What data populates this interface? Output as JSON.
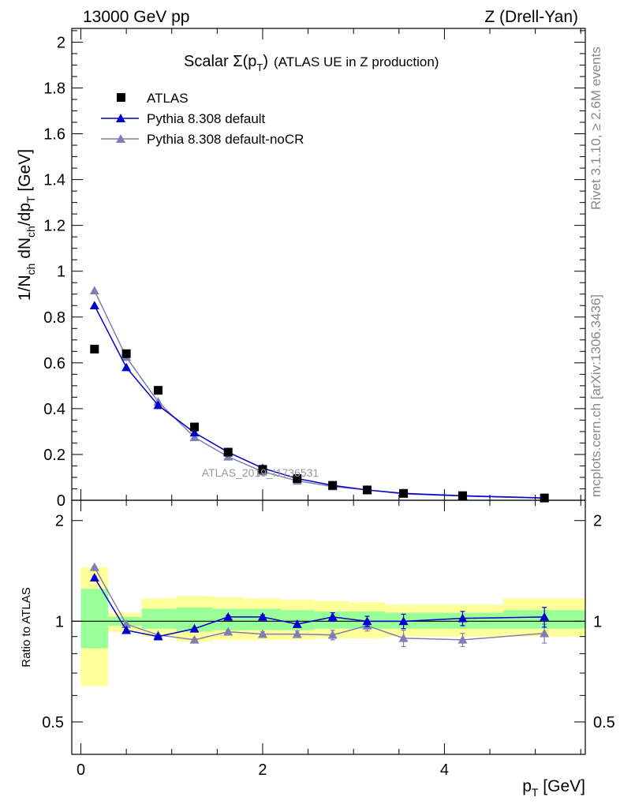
{
  "header": {
    "left": "13000 GeV pp",
    "right": "Z (Drell-Yan)"
  },
  "side_labels": {
    "rivet": "Rivet 3.1.10, ≥ 2.6M events",
    "mcplots": "mcplots.cern.ch [arXiv:1306.3436]"
  },
  "watermark": "ATLAS_2019_I1736531",
  "colors": {
    "atlas": "#000000",
    "default": "#0000cc",
    "noCR": "#7f7fb2",
    "band_inner": "#99ff99",
    "band_outer": "#ffff99"
  },
  "chart_data": [
    {
      "type": "scatter",
      "panel": "main",
      "title_main": "Scalar Σ(p",
      "title_sub": "T",
      "title_close": ")",
      "title_tail": "(ATLAS UE in Z production)",
      "ylabel": "1/N",
      "ylabel_parts": [
        "1/N",
        "ch",
        " dN",
        "ch",
        "/dp",
        "T",
        " [GeV]"
      ],
      "ylim": [
        0,
        2.06
      ],
      "xlim": [
        -0.1,
        5.55
      ],
      "y_ticks": [
        "0",
        "0.2",
        "0.4",
        "0.6",
        "0.8",
        "1",
        "1.2",
        "1.4",
        "1.6",
        "1.8",
        "2"
      ],
      "legend_position": "top-left",
      "series": [
        {
          "name": "ATLAS",
          "marker": "square",
          "x": [
            0.15,
            0.5,
            0.85,
            1.25,
            1.62,
            2.0,
            2.38,
            2.77,
            3.15,
            3.55,
            4.2,
            5.1
          ],
          "y": [
            0.66,
            0.64,
            0.48,
            0.32,
            0.21,
            0.135,
            0.095,
            0.065,
            0.045,
            0.03,
            0.02,
            0.01
          ]
        },
        {
          "name": "Pythia 8.308 default",
          "marker": "triangle",
          "x": [
            0.15,
            0.5,
            0.85,
            1.25,
            1.62,
            2.0,
            2.38,
            2.77,
            3.15,
            3.55,
            4.2,
            5.1
          ],
          "y": [
            0.85,
            0.58,
            0.415,
            0.295,
            0.21,
            0.14,
            0.095,
            0.065,
            0.045,
            0.03,
            0.02,
            0.01
          ]
        },
        {
          "name": "Pythia 8.308 default-noCR",
          "marker": "triangle",
          "x": [
            0.15,
            0.5,
            0.85,
            1.25,
            1.62,
            2.0,
            2.38,
            2.77,
            3.15,
            3.55,
            4.2,
            5.1
          ],
          "y": [
            0.915,
            0.625,
            0.43,
            0.275,
            0.19,
            0.125,
            0.085,
            0.06,
            0.045,
            0.028,
            0.018,
            0.009
          ]
        }
      ]
    },
    {
      "type": "line",
      "panel": "ratio",
      "ylabel": "Ratio to ATLAS",
      "xlabel_main": "p",
      "xlabel_sub": "T",
      "xlabel_tail": " [GeV]",
      "log_y": true,
      "ylim": [
        0.4,
        2.3
      ],
      "xlim": [
        -0.1,
        5.55
      ],
      "y_ticks": [
        "0.5",
        "1",
        "2"
      ],
      "x_ticks": [
        "0",
        "2",
        "4"
      ],
      "bands": {
        "x_edges": [
          [
            0.0,
            0.3
          ],
          [
            0.3,
            0.67
          ],
          [
            0.67,
            1.05
          ],
          [
            1.05,
            1.45
          ],
          [
            1.45,
            1.8
          ],
          [
            1.8,
            2.2
          ],
          [
            2.2,
            2.57
          ],
          [
            2.57,
            2.95
          ],
          [
            2.95,
            3.35
          ],
          [
            3.35,
            3.75
          ],
          [
            3.75,
            4.65
          ],
          [
            4.65,
            5.55
          ]
        ],
        "outer_low": [
          0.64,
          0.93,
          0.9,
          0.87,
          0.88,
          0.88,
          0.88,
          0.89,
          0.89,
          0.9,
          0.9,
          0.9
        ],
        "outer_high": [
          1.45,
          1.06,
          1.17,
          1.19,
          1.18,
          1.17,
          1.16,
          1.15,
          1.14,
          1.12,
          1.12,
          1.17
        ],
        "inner_low": [
          0.83,
          0.97,
          0.95,
          0.93,
          0.94,
          0.94,
          0.94,
          0.95,
          0.95,
          0.95,
          0.95,
          0.95
        ],
        "inner_high": [
          1.25,
          1.03,
          1.09,
          1.1,
          1.09,
          1.09,
          1.08,
          1.07,
          1.07,
          1.06,
          1.06,
          1.08
        ]
      },
      "series": [
        {
          "name": "Pythia 8.308 default",
          "x": [
            0.15,
            0.5,
            0.85,
            1.25,
            1.62,
            2.0,
            2.38,
            2.77,
            3.15,
            3.55,
            4.2,
            5.1
          ],
          "y": [
            1.35,
            0.94,
            0.9,
            0.95,
            1.03,
            1.03,
            0.98,
            1.03,
            1.0,
            1.0,
            1.02,
            1.03
          ],
          "err": [
            0.01,
            0.005,
            0.005,
            0.007,
            0.01,
            0.015,
            0.02,
            0.03,
            0.035,
            0.05,
            0.05,
            0.07
          ]
        },
        {
          "name": "Pythia 8.308 default-noCR",
          "x": [
            0.15,
            0.5,
            0.85,
            1.25,
            1.62,
            2.0,
            2.38,
            2.77,
            3.15,
            3.55,
            4.2,
            5.1
          ],
          "y": [
            1.45,
            0.98,
            0.91,
            0.88,
            0.93,
            0.915,
            0.915,
            0.91,
            0.97,
            0.89,
            0.88,
            0.92
          ],
          "err": [
            0.01,
            0.005,
            0.005,
            0.007,
            0.01,
            0.015,
            0.02,
            0.03,
            0.035,
            0.05,
            0.04,
            0.06
          ]
        }
      ]
    }
  ]
}
